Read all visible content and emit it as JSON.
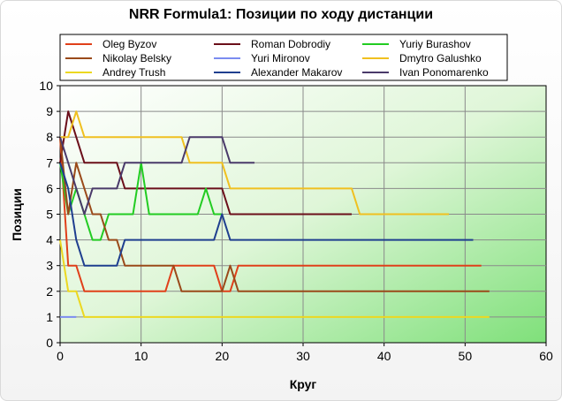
{
  "chart_data": {
    "type": "line",
    "title": "NRR Formula1: Позиции по ходу дистанции",
    "xlabel": "Круг",
    "ylabel": "Позиции",
    "xlim": [
      0,
      60
    ],
    "ylim": [
      0,
      10
    ],
    "x_ticks": [
      "0",
      "10",
      "20",
      "30",
      "40",
      "50",
      "60"
    ],
    "y_ticks": [
      "0",
      "1",
      "2",
      "3",
      "4",
      "5",
      "6",
      "7",
      "8",
      "9",
      "10"
    ],
    "grid": true,
    "legend_position": "top",
    "series": [
      {
        "name": "Oleg Byzov",
        "color": "#e0401a",
        "points": [
          [
            0,
            8
          ],
          [
            1,
            3
          ],
          [
            2,
            3
          ],
          [
            3,
            2
          ],
          [
            13,
            2
          ],
          [
            14,
            3
          ],
          [
            19,
            3
          ],
          [
            20,
            2
          ],
          [
            21,
            2
          ],
          [
            22,
            3
          ],
          [
            52,
            3
          ]
        ]
      },
      {
        "name": "Roman Dobrodiy",
        "color": "#6b0f1a",
        "points": [
          [
            0,
            7
          ],
          [
            1,
            9
          ],
          [
            2,
            8
          ],
          [
            3,
            7
          ],
          [
            7,
            7
          ],
          [
            8,
            6
          ],
          [
            20,
            6
          ],
          [
            21,
            5
          ],
          [
            36,
            5
          ]
        ]
      },
      {
        "name": "Yuriy Burashov",
        "color": "#22cc22",
        "points": [
          [
            0,
            7
          ],
          [
            1,
            5
          ],
          [
            2,
            6
          ],
          [
            3,
            5
          ],
          [
            4,
            4
          ],
          [
            5,
            4
          ],
          [
            6,
            5
          ],
          [
            9,
            5
          ],
          [
            10,
            7
          ],
          [
            11,
            5
          ],
          [
            17,
            5
          ],
          [
            18,
            6
          ],
          [
            19,
            5
          ],
          [
            20,
            5
          ]
        ]
      },
      {
        "name": "Nikolay Belsky",
        "color": "#9a4a1a",
        "points": [
          [
            0,
            8
          ],
          [
            1,
            5
          ],
          [
            2,
            7
          ],
          [
            3,
            6
          ],
          [
            4,
            5
          ],
          [
            5,
            5
          ],
          [
            6,
            4
          ],
          [
            7,
            4
          ],
          [
            8,
            3
          ],
          [
            14,
            3
          ],
          [
            15,
            2
          ],
          [
            20,
            2
          ],
          [
            21,
            3
          ],
          [
            22,
            2
          ],
          [
            53,
            2
          ]
        ]
      },
      {
        "name": "Yuri Mironov",
        "color": "#7b8cf0",
        "points": [
          [
            0,
            1
          ],
          [
            2,
            1
          ]
        ]
      },
      {
        "name": "Dmytro Galushko",
        "color": "#f0c020",
        "points": [
          [
            0,
            8
          ],
          [
            1,
            8
          ],
          [
            2,
            9
          ],
          [
            3,
            8
          ],
          [
            15,
            8
          ],
          [
            16,
            7
          ],
          [
            20,
            7
          ],
          [
            21,
            6
          ],
          [
            36,
            6
          ],
          [
            37,
            5
          ],
          [
            48,
            5
          ]
        ]
      },
      {
        "name": "Andrey Trush",
        "color": "#ecd820",
        "points": [
          [
            0,
            4
          ],
          [
            1,
            2
          ],
          [
            2,
            2
          ],
          [
            3,
            1
          ],
          [
            53,
            1
          ]
        ]
      },
      {
        "name": "Alexander Makarov",
        "color": "#1f3f8f",
        "points": [
          [
            0,
            7
          ],
          [
            1,
            6
          ],
          [
            2,
            4
          ],
          [
            3,
            3
          ],
          [
            7,
            3
          ],
          [
            8,
            4
          ],
          [
            19,
            4
          ],
          [
            20,
            5
          ],
          [
            21,
            4
          ],
          [
            51,
            4
          ]
        ]
      },
      {
        "name": "Ivan Ponomarenko",
        "color": "#4a3a6a",
        "points": [
          [
            0,
            8
          ],
          [
            1,
            7
          ],
          [
            2,
            6
          ],
          [
            3,
            5
          ],
          [
            4,
            6
          ],
          [
            7,
            6
          ],
          [
            8,
            7
          ],
          [
            15,
            7
          ],
          [
            16,
            8
          ],
          [
            20,
            8
          ],
          [
            21,
            7
          ],
          [
            24,
            7
          ]
        ]
      }
    ]
  }
}
